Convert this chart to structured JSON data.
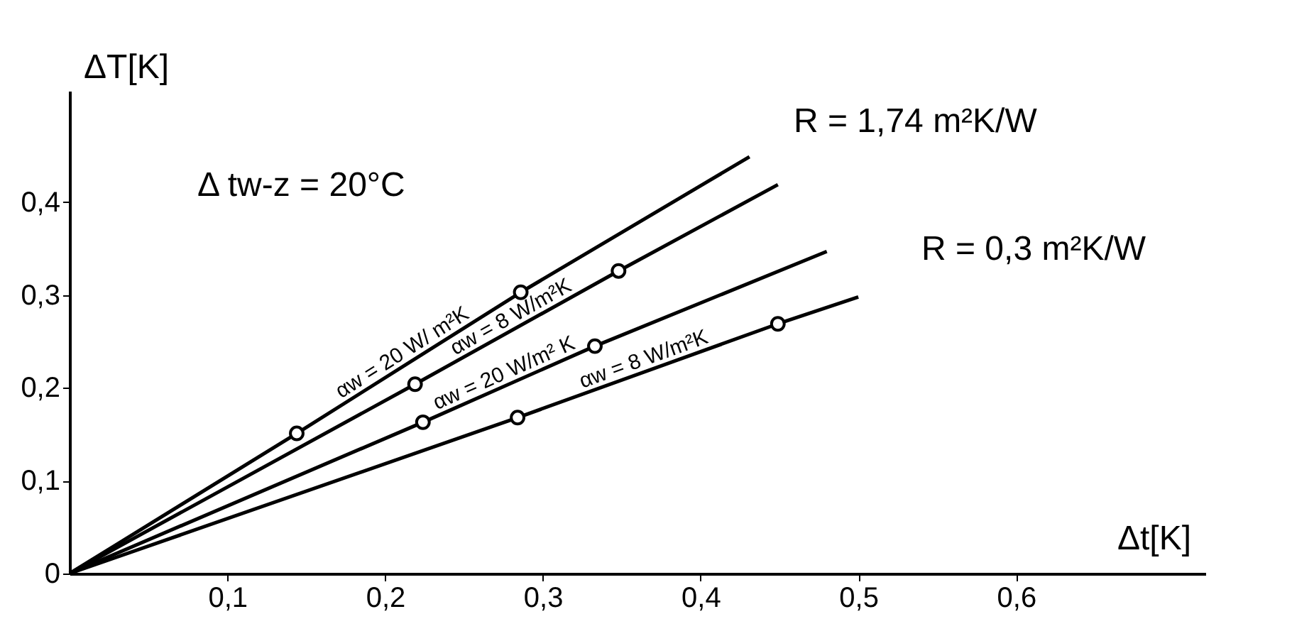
{
  "chart_data": {
    "type": "line",
    "xlabel": "Δt[K]",
    "ylabel": "ΔT[K]",
    "series": [
      {
        "name": "αw = 20 W/ m²K",
        "color": "#000000",
        "x": [
          0,
          0.144,
          0.286,
          0.431
        ],
        "values": [
          0,
          0.151,
          0.303,
          0.449
        ]
      },
      {
        "name": "αw = 8 W/m²K",
        "color": "#000000",
        "x": [
          0,
          0.219,
          0.348,
          0.449
        ],
        "values": [
          0,
          0.204,
          0.326,
          0.419
        ]
      },
      {
        "name": "αw = 20 W/m² K",
        "color": "#000000",
        "x": [
          0,
          0.224,
          0.333,
          0.48
        ],
        "values": [
          0,
          0.163,
          0.245,
          0.347
        ]
      },
      {
        "name": "αw = 8 W/m²K",
        "color": "#000000",
        "x": [
          0,
          0.284,
          0.449,
          0.5
        ],
        "values": [
          0,
          0.168,
          0.269,
          0.298
        ]
      },
      {
        "type": "scatter",
        "color": "#000000",
        "marker": "circle",
        "x": [
          0.144,
          0.286,
          0.219,
          0.348,
          0.224,
          0.333,
          0.284,
          0.449
        ],
        "values": [
          0.151,
          0.303,
          0.204,
          0.326,
          0.163,
          0.245,
          0.168,
          0.269
        ]
      }
    ],
    "marker": "none",
    "line_style": "solid",
    "grid": false,
    "xlim": [
      0,
      0.72
    ],
    "ylim": [
      0,
      0.52
    ],
    "xticks": [
      {
        "value": 0.1,
        "label": "0,1"
      },
      {
        "value": 0.2,
        "label": "0,2"
      },
      {
        "value": 0.3,
        "label": "0,3"
      },
      {
        "value": 0.4,
        "label": "0,4"
      },
      {
        "value": 0.5,
        "label": "0,5"
      },
      {
        "value": 0.6,
        "label": "0,6"
      }
    ],
    "yticks": [
      0,
      {
        "value": 0.1,
        "label": "0,1"
      },
      {
        "value": 0.2,
        "label": "0,2"
      },
      {
        "value": 0.3,
        "label": "0,3"
      },
      {
        "value": 0.4,
        "label": "0,4"
      }
    ],
    "annotations": [
      "Δ tw-z = 20°C",
      "R = 1,74 m²K/W",
      "R = 0,3 m²K/W"
    ]
  }
}
